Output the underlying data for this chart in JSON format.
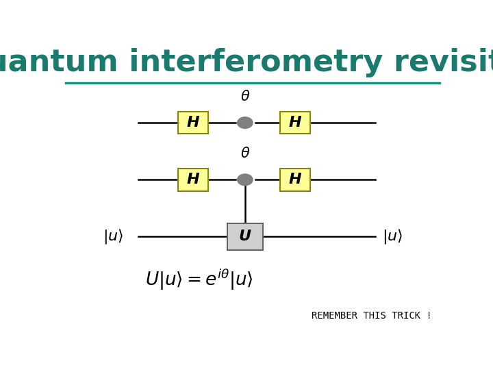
{
  "title": "Quantum interferometry revisited",
  "title_color": "#1a7a6e",
  "title_fontsize": 32,
  "bg_color": "#ffffff",
  "line_color": "#000000",
  "teal_line_color": "#1a9080",
  "H_box_color": "#ffff99",
  "H_box_edge": "#888800",
  "U_box_color": "#d0d0d0",
  "U_box_edge": "#666666",
  "dot_color": "#808080",
  "remember_text": "REMEMBER THIS TRICK !",
  "formula_text": "$U|u\\rangle = e^{i\\theta}|u\\rangle$",
  "ket_u_text": "$|u\\rangle$",
  "theta_text": "$\\theta$"
}
